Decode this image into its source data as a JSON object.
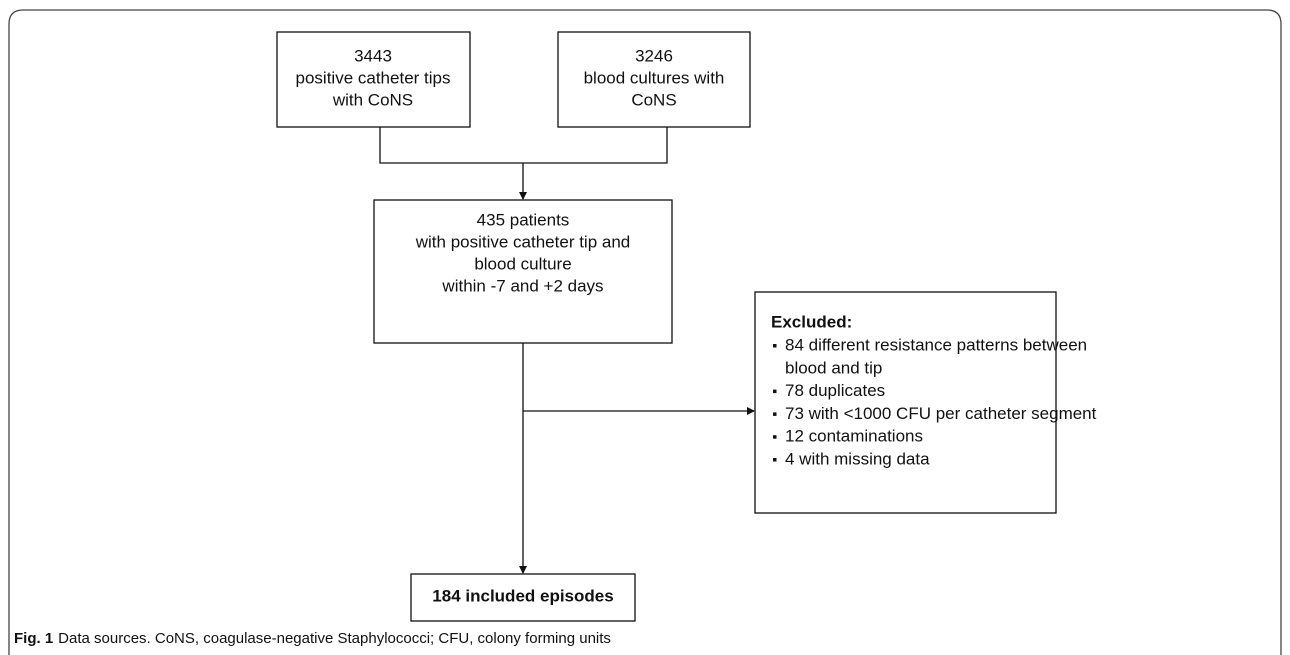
{
  "nodes": [
    {
      "lines": [
        "3443",
        "positive catheter tips",
        "with CoNS"
      ]
    },
    {
      "lines": [
        "3246",
        "blood cultures with",
        "CoNS"
      ]
    },
    {
      "lines": [
        "435 patients",
        "with positive catheter tip and",
        "blood culture",
        "within -7 and +2 days"
      ]
    },
    {
      "lines": [
        "184 included episodes"
      ]
    }
  ],
  "excluded": {
    "title": "Excluded:",
    "items": [
      {
        "lines": [
          "84 different resistance patterns between",
          "blood and tip"
        ]
      },
      {
        "lines": [
          "78 duplicates"
        ]
      },
      {
        "lines": [
          "73 with <1000 CFU per catheter segment"
        ]
      },
      {
        "lines": [
          "12 contaminations"
        ]
      },
      {
        "lines": [
          "4 with missing data"
        ]
      }
    ]
  },
  "caption": {
    "label": "Fig. 1",
    "text": "Data sources. CoNS, coagulase-negative Staphylococci; CFU, colony forming units"
  }
}
